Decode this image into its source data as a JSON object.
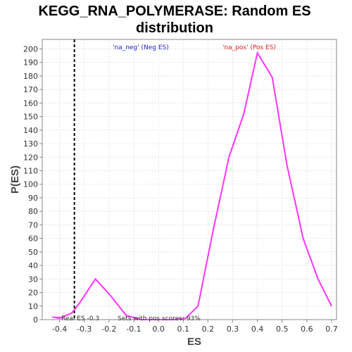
{
  "chart_data": {
    "type": "line",
    "title_line1": "KEGG_RNA_POLYMERASE: Random ES",
    "title_line2": "distribution",
    "xlabel": "ES",
    "ylabel": "P(ES)",
    "xlim": [
      -0.47,
      0.72
    ],
    "ylim": [
      0,
      207
    ],
    "xticks": [
      "-0.4",
      "-0.3",
      "-0.2",
      "-0.1",
      "0.0",
      "0.1",
      "0.2",
      "0.3",
      "0.4",
      "0.5",
      "0.6",
      "0.7"
    ],
    "xtick_values": [
      -0.4,
      -0.3,
      -0.2,
      -0.1,
      0.0,
      0.1,
      0.2,
      0.3,
      0.4,
      0.5,
      0.6,
      0.7
    ],
    "yticks": [
      0,
      10,
      20,
      30,
      40,
      50,
      60,
      70,
      80,
      90,
      100,
      110,
      120,
      130,
      140,
      150,
      160,
      170,
      180,
      190,
      200
    ],
    "grid": true,
    "series": [
      {
        "color": "#ff33ff",
        "x": [
          -0.43,
          -0.4,
          -0.35,
          -0.32,
          -0.255,
          -0.195,
          -0.13,
          -0.07,
          0.0,
          0.07,
          0.11,
          0.16,
          0.22,
          0.285,
          0.345,
          0.4,
          0.46,
          0.52,
          0.585,
          0.645,
          0.7
        ],
        "y": [
          2,
          1,
          5,
          12,
          30,
          18,
          3,
          0,
          0,
          0,
          1,
          10,
          65,
          120,
          152,
          197,
          179,
          114,
          60,
          30,
          10
        ]
      }
    ],
    "real_es_line": {
      "x": -0.34,
      "label": "Real ES -0.3"
    },
    "annotations": {
      "neg_label": "'na_neg' (Neg ES)",
      "neg_color": "#2222cc",
      "pos_label": "'na_pos' (Pos ES)",
      "pos_color": "#dd2222",
      "pos_scores": "Sets with pos scores: 93%"
    }
  }
}
